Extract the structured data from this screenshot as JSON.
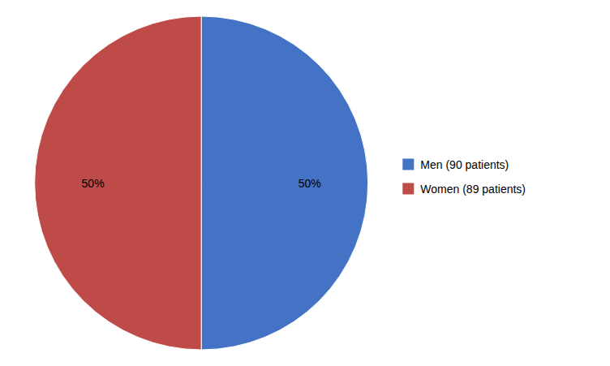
{
  "chart_data": {
    "type": "pie",
    "categories": [
      "Men (90 patients)",
      "Women (89 patients)"
    ],
    "values": [
      50,
      50
    ],
    "value_labels": [
      "50%",
      "50%"
    ],
    "colors": [
      "#4472C4",
      "#BE4B48"
    ],
    "data_labels": true,
    "legend": "right"
  }
}
